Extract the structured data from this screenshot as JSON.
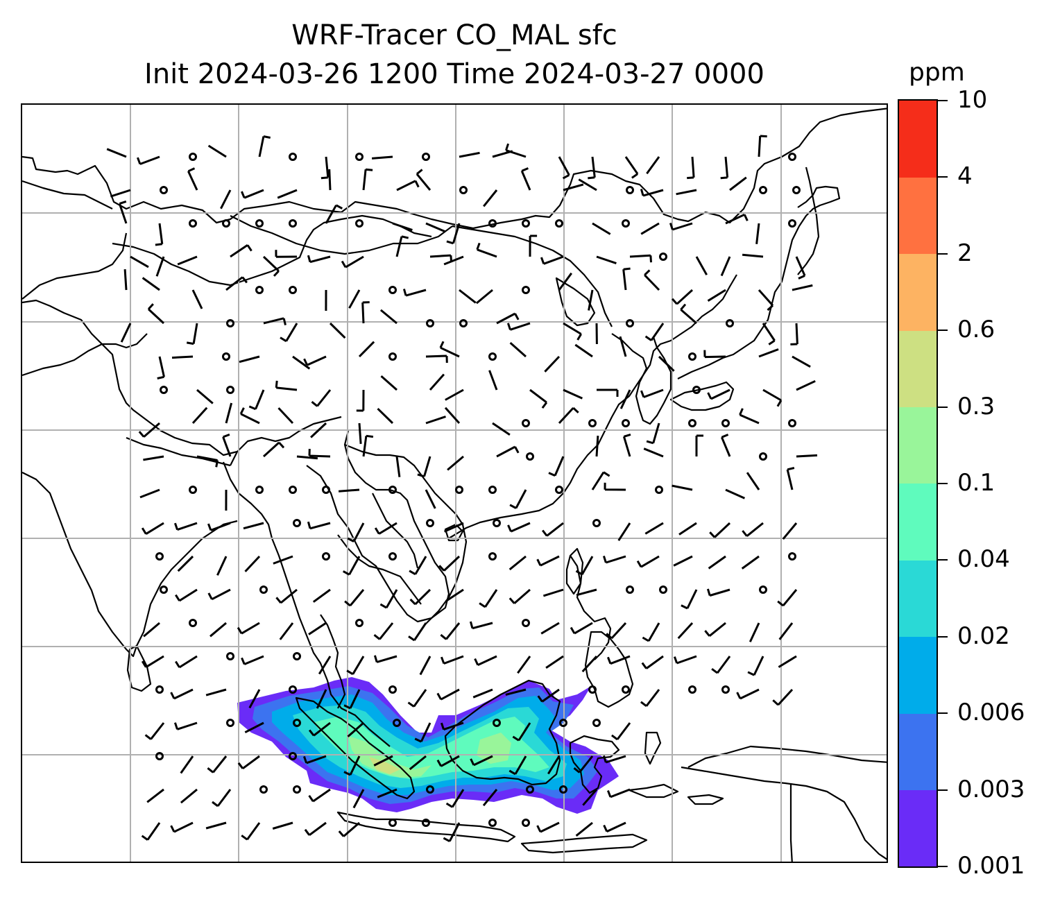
{
  "title": {
    "line1": "WRF-Tracer CO_MAL sfc",
    "line2": "Init 2024-03-26 1200 Time 2024-03-27 0000"
  },
  "colorbar": {
    "unit": "ppm",
    "levels": [
      "0.001",
      "0.003",
      "0.006",
      "0.02",
      "0.04",
      "0.1",
      "0.3",
      "0.6",
      "2",
      "4",
      "10"
    ],
    "colors": [
      "#6a2cf7",
      "#3c73f0",
      "#00acea",
      "#2ad9d6",
      "#5ffbbd",
      "#99f59a",
      "#cde082",
      "#fdb362",
      "#ff7140",
      "#f52d1a"
    ]
  },
  "map": {
    "region": "East and Southeast Asia",
    "gridlines": true,
    "plume_region": "Sumatra and Borneo"
  }
}
